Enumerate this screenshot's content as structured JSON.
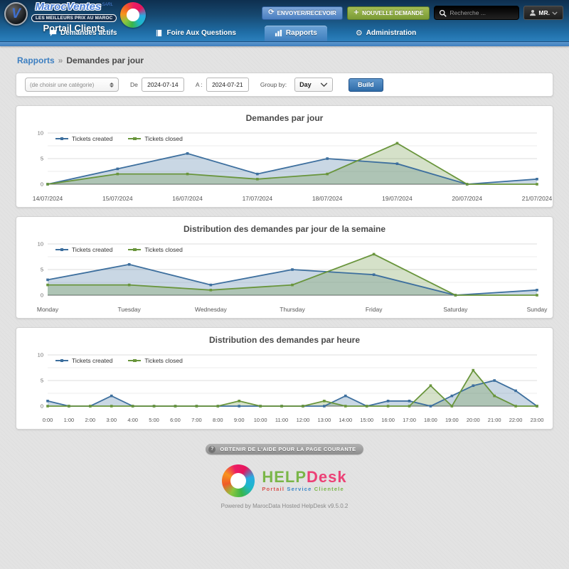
{
  "header": {
    "brand": {
      "badge_letter": "V",
      "name": "MarocVentes",
      "suffix": "SARL",
      "tagline": "LES MEILLEURS PRIX AU MAROC",
      "portal": "Portail Clients"
    },
    "send_receive_label": "ENVOYER/RECEVOIR",
    "new_request_label": "NOUVELLE DEMANDE",
    "search_placeholder": "Recherche ...",
    "user_label": "MR.",
    "tabs": [
      {
        "label": "Demandes actifs",
        "active": false
      },
      {
        "label": "Foire Aux Questions",
        "active": false
      },
      {
        "label": "Rapports",
        "active": true
      },
      {
        "label": "Administration",
        "active": false
      }
    ]
  },
  "breadcrumb": {
    "section": "Rapports",
    "separator": "»",
    "page": "Demandes par jour"
  },
  "filters": {
    "category_placeholder": "(de choisir une catégorie)",
    "from_label": "De",
    "from_value": "2024-07-14",
    "to_label": "A :",
    "to_value": "2024-07-21",
    "group_by_label": "Group by:",
    "group_by_value": "Day",
    "build_label": "Build"
  },
  "chart_data": [
    {
      "type": "area",
      "title": "Demandes par jour",
      "categories": [
        "14/07/2024",
        "15/07/2024",
        "16/07/2024",
        "17/07/2024",
        "18/07/2024",
        "19/07/2024",
        "20/07/2024",
        "21/07/2024"
      ],
      "series": [
        {
          "name": "Tickets created",
          "color": "#3d6f9e",
          "values": [
            0,
            3,
            6,
            2,
            5,
            4,
            0,
            1
          ]
        },
        {
          "name": "Tickets closed",
          "color": "#69953c",
          "values": [
            0,
            2,
            2,
            1,
            2,
            8,
            0,
            0
          ]
        }
      ],
      "ylim": [
        0,
        10
      ],
      "yticks": [
        0,
        5,
        10
      ],
      "grid": true,
      "legend_position": "top-left"
    },
    {
      "type": "area",
      "title": "Distribution des demandes par jour de la semaine",
      "categories": [
        "Monday",
        "Tuesday",
        "Wednesday",
        "Thursday",
        "Friday",
        "Saturday",
        "Sunday"
      ],
      "series": [
        {
          "name": "Tickets created",
          "color": "#3d6f9e",
          "values": [
            3,
            6,
            2,
            5,
            4,
            0,
            1
          ]
        },
        {
          "name": "Tickets closed",
          "color": "#69953c",
          "values": [
            2,
            2,
            1,
            2,
            8,
            0,
            0
          ]
        }
      ],
      "ylim": [
        0,
        10
      ],
      "yticks": [
        0,
        5,
        10
      ],
      "grid": true,
      "legend_position": "top-left"
    },
    {
      "type": "area",
      "title": "Distribution des demandes par heure",
      "categories": [
        "0:00",
        "1:00",
        "2:00",
        "3:00",
        "4:00",
        "5:00",
        "6:00",
        "7:00",
        "8:00",
        "9:00",
        "10:00",
        "11:00",
        "12:00",
        "13:00",
        "14:00",
        "15:00",
        "16:00",
        "17:00",
        "18:00",
        "19:00",
        "20:00",
        "21:00",
        "22:00",
        "23:00"
      ],
      "series": [
        {
          "name": "Tickets created",
          "color": "#3d6f9e",
          "values": [
            1,
            0,
            0,
            2,
            0,
            0,
            0,
            0,
            0,
            0,
            0,
            0,
            0,
            0,
            2,
            0,
            1,
            1,
            0,
            2,
            4,
            5,
            3,
            0
          ]
        },
        {
          "name": "Tickets closed",
          "color": "#69953c",
          "values": [
            0,
            0,
            0,
            0,
            0,
            0,
            0,
            0,
            0,
            1,
            0,
            0,
            0,
            1,
            0,
            0,
            0,
            0,
            4,
            0,
            7,
            2,
            0,
            0
          ]
        }
      ],
      "ylim": [
        0,
        10
      ],
      "yticks": [
        0,
        5,
        10
      ],
      "grid": true,
      "legend_position": "top-left"
    }
  ],
  "footer": {
    "help_button": "OBTENIR DE L'AIDE POUR LA PAGE COURANTE",
    "logo_help": "HELP",
    "logo_desk": "Desk",
    "logo_subtitle": [
      "Portail",
      "Service",
      "Clientele"
    ],
    "powered_by": "Powered by MarocData Hosted HelpDesk v9.5.0.2"
  },
  "icons": {
    "refresh": "⟳",
    "plus": "+",
    "gear": "⚙",
    "question": "?"
  },
  "colors": {
    "header_blue_dark": "#0e2f4f",
    "header_blue_light": "#2b80bd",
    "accent_blue": "#3e7fbe",
    "button_blue": "#4a7fc1",
    "button_green": "#7a9a35",
    "link_blue": "#3d7fc1",
    "series_created": "#3d6f9e",
    "series_closed": "#69953c",
    "helpdesk_green": "#7ab648",
    "helpdesk_pink": "#ec4176"
  }
}
